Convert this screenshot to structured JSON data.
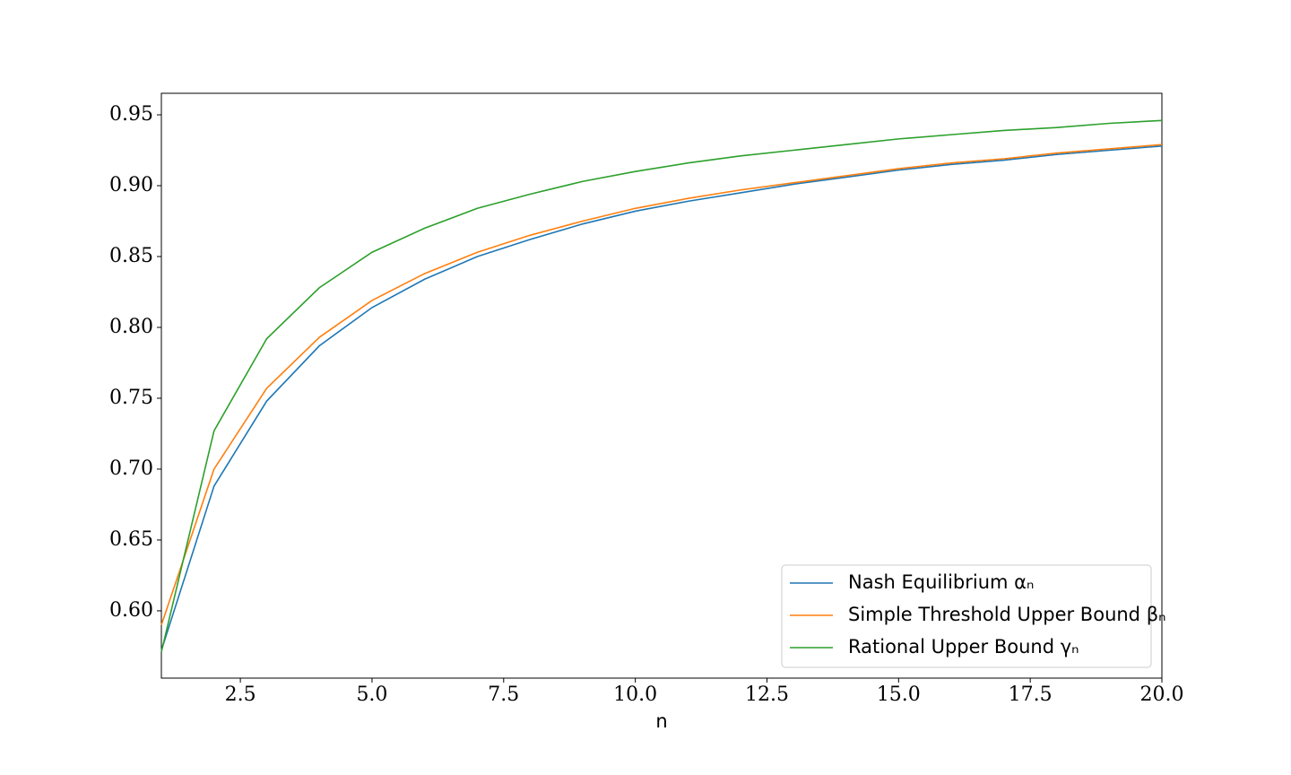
{
  "chart_data": {
    "type": "line",
    "x_label": "n",
    "x": [
      1,
      2,
      3,
      4,
      5,
      6,
      7,
      8,
      9,
      10,
      11,
      12,
      13,
      14,
      15,
      16,
      17,
      18,
      19,
      20
    ],
    "series": [
      {
        "name": "Nash Equilibrium αₙ",
        "color": "#1f77b4",
        "values": [
          0.572,
          0.688,
          0.748,
          0.787,
          0.814,
          0.834,
          0.85,
          0.862,
          0.873,
          0.882,
          0.889,
          0.895,
          0.901,
          0.906,
          0.911,
          0.915,
          0.918,
          0.922,
          0.925,
          0.928
        ]
      },
      {
        "name": "Simple Threshold Upper Bound βₙ",
        "color": "#ff7f0e",
        "values": [
          0.59,
          0.7,
          0.757,
          0.793,
          0.819,
          0.838,
          0.853,
          0.865,
          0.875,
          0.884,
          0.891,
          0.897,
          0.902,
          0.907,
          0.912,
          0.916,
          0.919,
          0.923,
          0.926,
          0.929
        ]
      },
      {
        "name": "Rational Upper Bound γₙ",
        "color": "#2ca02c",
        "values": [
          0.571,
          0.727,
          0.792,
          0.828,
          0.853,
          0.87,
          0.884,
          0.894,
          0.903,
          0.91,
          0.916,
          0.921,
          0.925,
          0.929,
          0.933,
          0.936,
          0.939,
          0.941,
          0.944,
          0.946
        ]
      }
    ],
    "xlim": [
      1,
      20
    ],
    "xticks": [
      2.5,
      {
        "value": 5,
        "label": "5.0"
      },
      7.5,
      {
        "value": 10,
        "label": "10.0"
      },
      12.5,
      {
        "value": 15,
        "label": "15.0"
      },
      17.5,
      {
        "value": 20,
        "label": "20.0"
      }
    ],
    "ylim": [
      0.5525,
      0.9652
    ],
    "yticks": [
      {
        "value": 0.6,
        "label": "0.60"
      },
      0.65,
      {
        "value": 0.7,
        "label": "0.70"
      },
      0.75,
      {
        "value": 0.8,
        "label": "0.80"
      },
      0.85,
      {
        "value": 0.9,
        "label": "0.90"
      },
      0.95
    ],
    "grid": false,
    "legend": "lower right"
  }
}
